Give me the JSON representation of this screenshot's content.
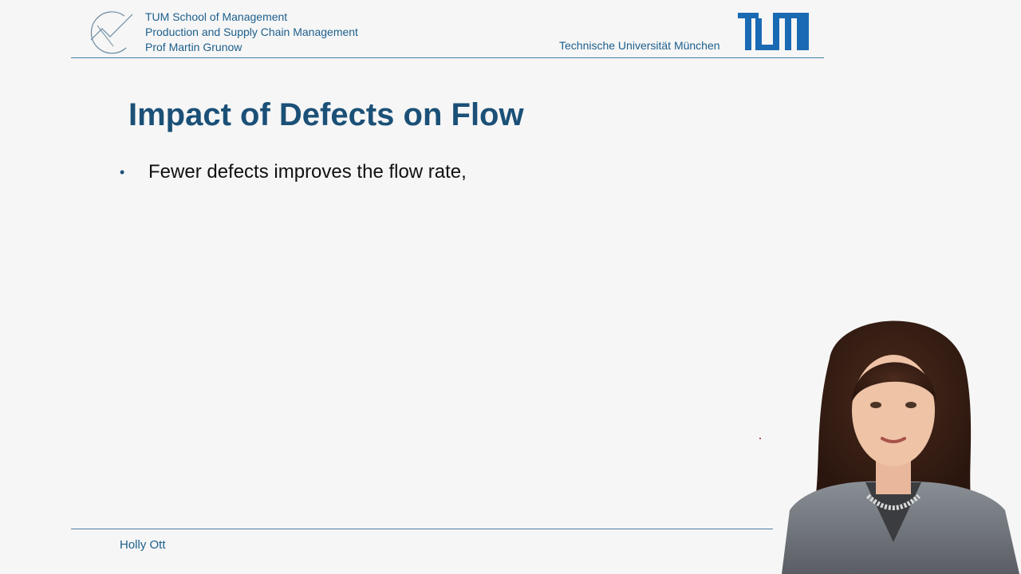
{
  "header": {
    "school": "TUM School of Management",
    "chair": "Production and Supply Chain Management",
    "professor": "Prof Martin Grunow",
    "university": "Technische Universität München",
    "logo_icon": "tum-som-logo-icon",
    "tum_logo": "tum-logo"
  },
  "slide": {
    "title": "Impact of Defects on Flow",
    "bullets": [
      {
        "text": "Fewer defects improves the flow rate,"
      }
    ]
  },
  "footer": {
    "speaker": "Holly Ott"
  },
  "colors": {
    "accent": "#1b5077",
    "header_text": "#1d5f8c",
    "rule": "#4d7fa3",
    "background": "#f6f6f6"
  }
}
